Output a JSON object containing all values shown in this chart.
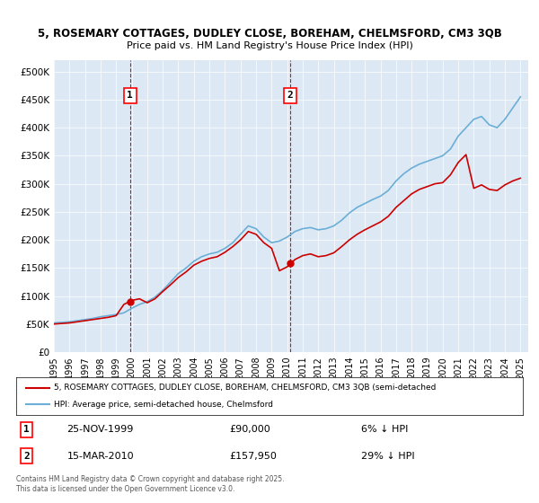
{
  "title_line1": "5, ROSEMARY COTTAGES, DUDLEY CLOSE, BOREHAM, CHELMSFORD, CM3 3QB",
  "title_line2": "Price paid vs. HM Land Registry's House Price Index (HPI)",
  "bg_color": "#dce9f5",
  "plot_bg_color": "#dce9f5",
  "line1_color": "#cc0000",
  "line2_color": "#6baed6",
  "marker1_date_idx": 5,
  "marker2_date_idx": 15,
  "marker1_label": "25-NOV-1999",
  "marker1_price": "£90,000",
  "marker1_pct": "6% ↓ HPI",
  "marker2_label": "15-MAR-2010",
  "marker2_price": "£157,950",
  "marker2_pct": "29% ↓ HPI",
  "legend_line1": "5, ROSEMARY COTTAGES, DUDLEY CLOSE, BOREHAM, CHELMSFORD, CM3 3QB (semi-detached",
  "legend_line2": "HPI: Average price, semi-detached house, Chelmsford",
  "footer": "Contains HM Land Registry data © Crown copyright and database right 2025.\nThis data is licensed under the Open Government Licence v3.0.",
  "ylim": [
    0,
    520000
  ],
  "yticks": [
    0,
    50000,
    100000,
    150000,
    200000,
    250000,
    300000,
    350000,
    400000,
    450000,
    500000
  ],
  "ytick_labels": [
    "£0",
    "£50K",
    "£100K",
    "£150K",
    "£200K",
    "£250K",
    "£300K",
    "£350K",
    "£400K",
    "£450K",
    "£500K"
  ],
  "hpi_years": [
    1995,
    1995.5,
    1996,
    1996.5,
    1997,
    1997.5,
    1998,
    1998.5,
    1999,
    1999.5,
    2000,
    2000.5,
    2001,
    2001.5,
    2002,
    2002.5,
    2003,
    2003.5,
    2004,
    2004.5,
    2005,
    2005.5,
    2006,
    2006.5,
    2007,
    2007.5,
    2008,
    2008.5,
    2009,
    2009.5,
    2010,
    2010.5,
    2011,
    2011.5,
    2012,
    2012.5,
    2013,
    2013.5,
    2014,
    2014.5,
    2015,
    2015.5,
    2016,
    2016.5,
    2017,
    2017.5,
    2018,
    2018.5,
    2019,
    2019.5,
    2020,
    2020.5,
    2021,
    2021.5,
    2022,
    2022.5,
    2023,
    2023.5,
    2024,
    2024.5,
    2025
  ],
  "hpi_values": [
    52000,
    53000,
    54000,
    56000,
    58000,
    60000,
    63000,
    65000,
    67000,
    70000,
    78000,
    85000,
    90000,
    98000,
    110000,
    125000,
    140000,
    150000,
    162000,
    170000,
    175000,
    178000,
    185000,
    195000,
    210000,
    225000,
    220000,
    205000,
    195000,
    198000,
    205000,
    215000,
    220000,
    222000,
    218000,
    220000,
    225000,
    235000,
    248000,
    258000,
    265000,
    272000,
    278000,
    288000,
    305000,
    318000,
    328000,
    335000,
    340000,
    345000,
    350000,
    362000,
    385000,
    400000,
    415000,
    420000,
    405000,
    400000,
    415000,
    435000,
    455000
  ],
  "price_years": [
    1995,
    1995.5,
    1996,
    1996.5,
    1997,
    1997.5,
    1998,
    1998.5,
    1999,
    1999.5,
    2000,
    2000.5,
    2001,
    2001.5,
    2002,
    2002.5,
    2003,
    2003.5,
    2004,
    2004.5,
    2005,
    2005.5,
    2006,
    2006.5,
    2007,
    2007.5,
    2008,
    2008.5,
    2009,
    2009.5,
    2010,
    2010.5,
    2011,
    2011.5,
    2012,
    2012.5,
    2013,
    2013.5,
    2014,
    2014.5,
    2015,
    2015.5,
    2016,
    2016.5,
    2017,
    2017.5,
    2018,
    2018.5,
    2019,
    2019.5,
    2020,
    2020.5,
    2021,
    2021.5,
    2022,
    2022.5,
    2023,
    2023.5,
    2024,
    2024.5,
    2025
  ],
  "price_values": [
    50000,
    51000,
    52000,
    54000,
    56000,
    58000,
    60000,
    62000,
    65000,
    85000,
    92000,
    95000,
    88000,
    95000,
    108000,
    120000,
    133000,
    143000,
    155000,
    162000,
    167000,
    170000,
    178000,
    188000,
    200000,
    215000,
    210000,
    195000,
    185000,
    145000,
    152000,
    165000,
    172000,
    175000,
    170000,
    172000,
    177000,
    188000,
    200000,
    210000,
    218000,
    225000,
    232000,
    242000,
    258000,
    270000,
    282000,
    290000,
    295000,
    300000,
    302000,
    316000,
    338000,
    352000,
    292000,
    298000,
    290000,
    288000,
    298000,
    305000,
    310000
  ],
  "sale1_year": 1999.9,
  "sale1_value": 90000,
  "sale2_year": 2010.2,
  "sale2_value": 157950,
  "xlim": [
    1995,
    2025.5
  ],
  "xticks": [
    1995,
    1996,
    1997,
    1998,
    1999,
    2000,
    2001,
    2002,
    2003,
    2004,
    2005,
    2006,
    2007,
    2008,
    2009,
    2010,
    2011,
    2012,
    2013,
    2014,
    2015,
    2016,
    2017,
    2018,
    2019,
    2020,
    2021,
    2022,
    2023,
    2024,
    2025
  ]
}
